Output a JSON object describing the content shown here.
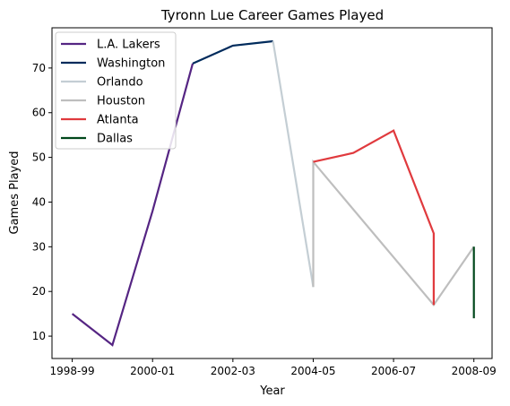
{
  "chart_data": {
    "type": "line",
    "title": "Tyronn Lue Career Games Played",
    "xlabel": "Year",
    "ylabel": "Games Played",
    "x_ticks": [
      "1998-99",
      "2000-01",
      "2002-03",
      "2004-05",
      "2006-07",
      "2008-09"
    ],
    "y_ticks": [
      10,
      20,
      30,
      40,
      50,
      60,
      70
    ],
    "ylim": [
      5,
      79
    ],
    "grid": false,
    "legend_position": "top-left",
    "series": [
      {
        "name": "L.A. Lakers",
        "color": "#552583",
        "points": [
          [
            "1998-99",
            15
          ],
          [
            "1999-00",
            8
          ],
          [
            "2000-01",
            38
          ],
          [
            "2001-02",
            71
          ]
        ]
      },
      {
        "name": "Washington",
        "color": "#002B5C",
        "points": [
          [
            "2001-02",
            71
          ],
          [
            "2002-03",
            75
          ],
          [
            "2003-04",
            76
          ]
        ]
      },
      {
        "name": "Orlando",
        "color": "#C4CED4",
        "points": [
          [
            "2003-04",
            76
          ],
          [
            "2004-05",
            21
          ]
        ]
      },
      {
        "name": "Houston",
        "color": "#BEBEBE",
        "points": [
          [
            "2004-05",
            21
          ],
          [
            "2004-05",
            49
          ],
          [
            "2007-08",
            17
          ],
          [
            "2008-09",
            30
          ]
        ]
      },
      {
        "name": "Atlanta",
        "color": "#E03A3E",
        "points": [
          [
            "2004-05",
            49
          ],
          [
            "2005-06",
            51
          ],
          [
            "2006-07",
            56
          ],
          [
            "2007-08",
            33
          ],
          [
            "2007-08",
            17
          ]
        ]
      },
      {
        "name": "Dallas",
        "color": "#00471B",
        "points": [
          [
            "2008-09",
            30
          ],
          [
            "2008-09",
            14
          ]
        ]
      }
    ]
  }
}
